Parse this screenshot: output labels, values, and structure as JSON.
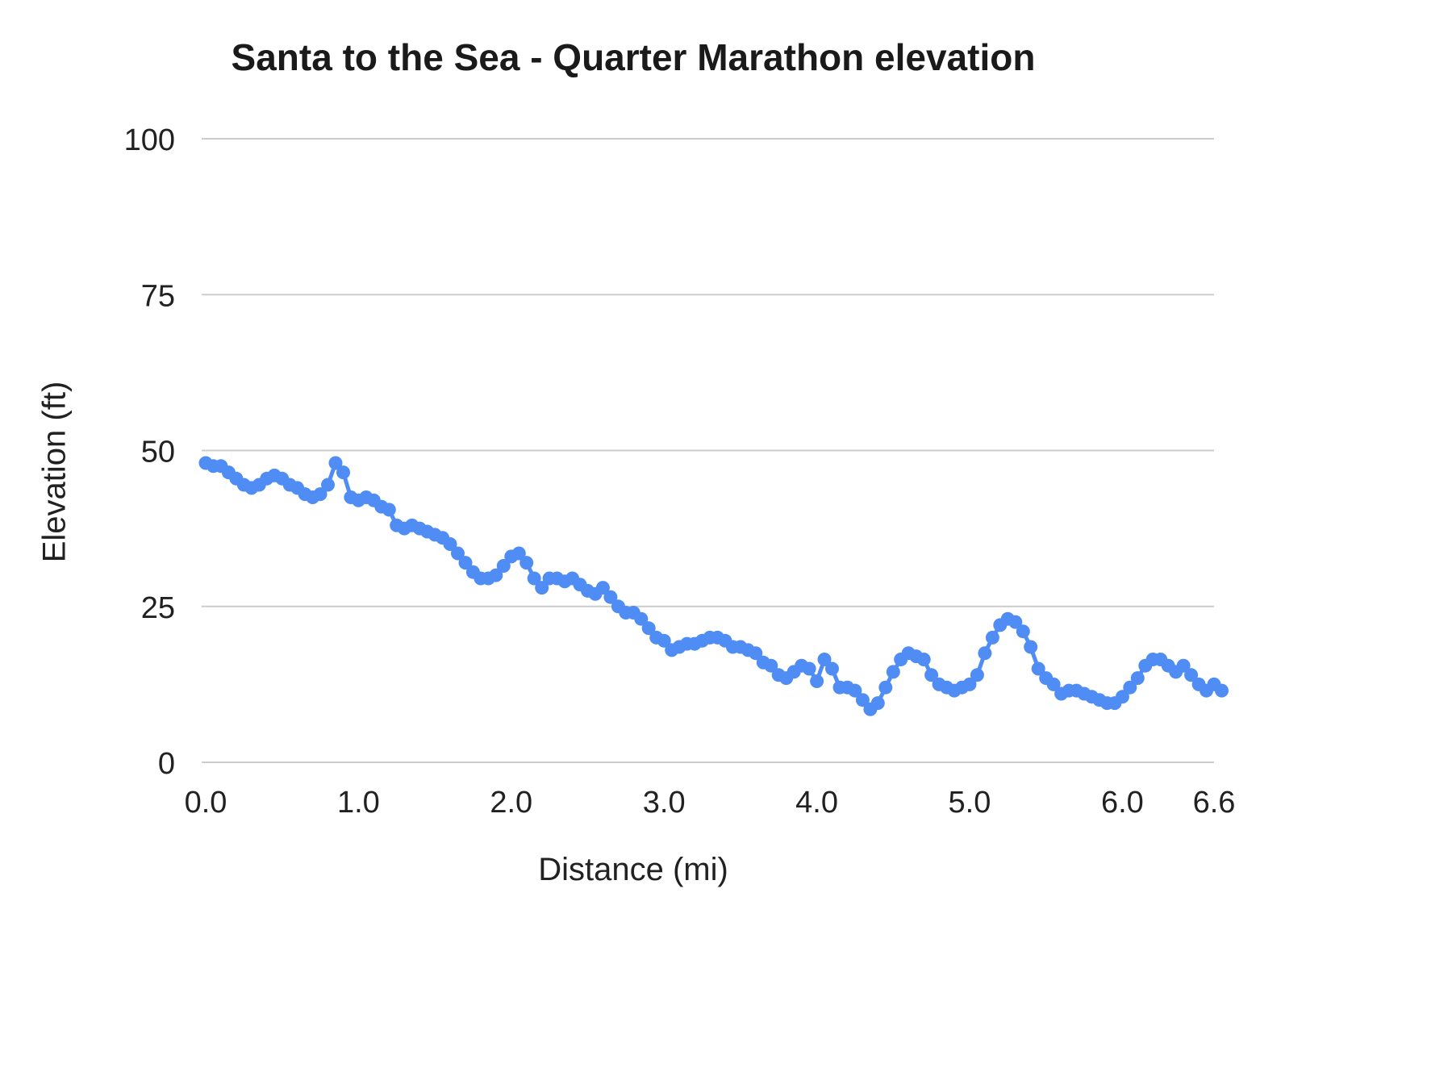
{
  "chart_data": {
    "type": "scatter",
    "title": "Santa to the Sea - Quarter Marathon elevation",
    "xlabel": "Distance (mi)",
    "ylabel": "Elevation (ft)",
    "xlim": [
      0,
      6.6
    ],
    "ylim": [
      0,
      100
    ],
    "grid": true,
    "legend_position": "none",
    "gridline_color": "#cccccc",
    "point_color": "#4f8df5",
    "x_ticks": [
      0,
      1,
      2,
      3,
      4,
      5,
      6,
      6.6
    ],
    "x_tick_labels": [
      "0.0",
      "1.0",
      "2.0",
      "3.0",
      "4.0",
      "5.0",
      "6.0",
      "6.6"
    ],
    "y_ticks": [
      0,
      25,
      50,
      75,
      100
    ],
    "y_tick_labels": [
      "0",
      "25",
      "50",
      "75",
      "100"
    ],
    "x_start": 0,
    "x_step": 0.05,
    "series": [
      {
        "name": "Elevation",
        "values": [
          48,
          47.5,
          47.5,
          46.5,
          45.5,
          44.5,
          44,
          44.5,
          45.5,
          46,
          45.5,
          44.5,
          44,
          43,
          42.5,
          43,
          44.5,
          48,
          46.5,
          42.5,
          42,
          42.5,
          42,
          41,
          40.5,
          38,
          37.5,
          38,
          37.5,
          37,
          36.5,
          36,
          35,
          33.5,
          32,
          30.5,
          29.5,
          29.5,
          30,
          31.5,
          33,
          33.5,
          32,
          29.5,
          28,
          29.5,
          29.5,
          29,
          29.5,
          28.5,
          27.5,
          27,
          28,
          26.5,
          25,
          24,
          24,
          23,
          21.5,
          20,
          19.5,
          18,
          18.5,
          19,
          19,
          19.5,
          20,
          20,
          19.5,
          18.5,
          18.5,
          18,
          17.5,
          16,
          15.5,
          14,
          13.5,
          14.5,
          15.5,
          15,
          13,
          16.5,
          15,
          12,
          12,
          11.5,
          10,
          8.5,
          9.5,
          12,
          14.5,
          16.5,
          17.5,
          17,
          16.5,
          14,
          12.5,
          12,
          11.5,
          12,
          12.5,
          14,
          17.5,
          20,
          22,
          23,
          22.5,
          21,
          18.5,
          15,
          13.5,
          12.5,
          11,
          11.5,
          11.5,
          11,
          10.5,
          10,
          9.5,
          9.5,
          10.5,
          12,
          13.5,
          15.5,
          16.5,
          16.5,
          15.5,
          14.5,
          15.5,
          14,
          12.5,
          11.5,
          12.5,
          11.5
        ]
      }
    ]
  }
}
